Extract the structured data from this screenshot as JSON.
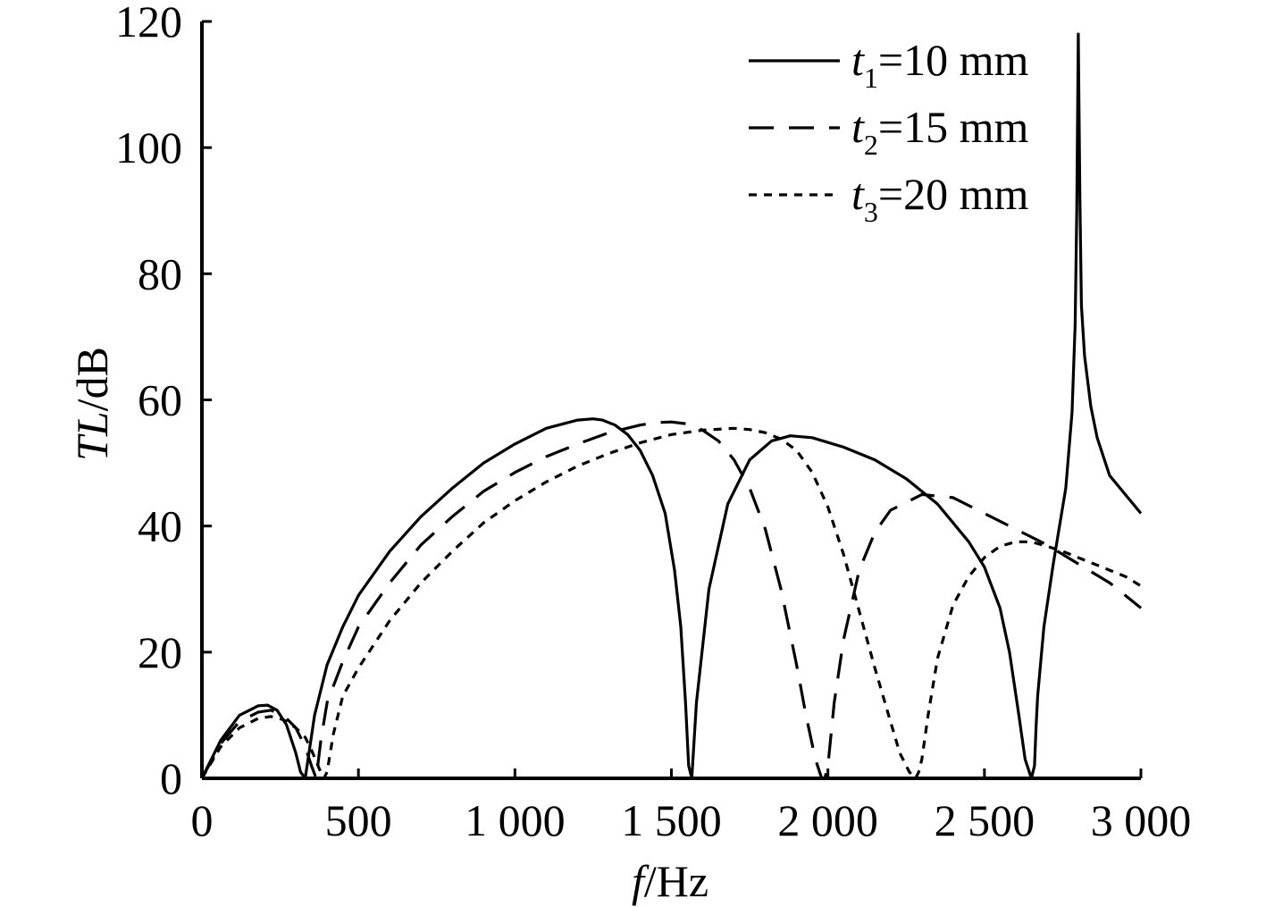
{
  "chart_data": {
    "type": "line",
    "title": "",
    "xlabel": {
      "var": "f",
      "unit": "/Hz"
    },
    "ylabel": {
      "var": "TL",
      "unit": "/dB"
    },
    "xlim": [
      0,
      3000
    ],
    "ylim": [
      0,
      120
    ],
    "xticks": [
      0,
      500,
      1000,
      1500,
      2000,
      2500,
      3000
    ],
    "xtick_labels": [
      "0",
      "500",
      "1 000",
      "1 500",
      "2 000",
      "2 500",
      "3 000"
    ],
    "yticks": [
      0,
      20,
      40,
      60,
      80,
      100,
      120
    ],
    "ytick_labels": [
      "0",
      "20",
      "40",
      "60",
      "80",
      "100",
      "120"
    ],
    "grid": false,
    "legend_position": "top-right",
    "series": [
      {
        "name": "t1=10 mm",
        "legend": {
          "var": "t",
          "sub": "1",
          "rest": "=10 mm"
        },
        "dash": "solid",
        "x": [
          0,
          60,
          120,
          180,
          210,
          240,
          270,
          300,
          315,
          330,
          360,
          400,
          450,
          500,
          600,
          700,
          800,
          900,
          1000,
          1100,
          1200,
          1250,
          1280,
          1320,
          1360,
          1400,
          1440,
          1480,
          1510,
          1530,
          1545,
          1555,
          1565,
          1580,
          1620,
          1680,
          1750,
          1820,
          1880,
          1950,
          2050,
          2150,
          2250,
          2350,
          2450,
          2500,
          2550,
          2580,
          2610,
          2630,
          2650,
          2660,
          2665,
          2670,
          2690,
          2720,
          2760,
          2780,
          2790,
          2795,
          2800,
          2805,
          2810,
          2820,
          2840,
          2860,
          2900,
          2950,
          3000
        ],
        "y": [
          0,
          6,
          10,
          11.5,
          11.6,
          10.8,
          8.5,
          4,
          1,
          0,
          10,
          18,
          24,
          29,
          36,
          41.5,
          46,
          50,
          53,
          55.5,
          56.8,
          57,
          56.8,
          56,
          54.5,
          52,
          48,
          42,
          33,
          24,
          12,
          2,
          0,
          12,
          30,
          43.5,
          50.5,
          53.5,
          54.3,
          54,
          52.5,
          50.5,
          47.5,
          43.5,
          37.5,
          33.5,
          27,
          20,
          10,
          3,
          0,
          2,
          8,
          13,
          24,
          34,
          46,
          58,
          72,
          90,
          118,
          92,
          75,
          67,
          59,
          54,
          48,
          45,
          42
        ]
      },
      {
        "name": "t2=15 mm",
        "legend": {
          "var": "t",
          "sub": "2",
          "rest": "=15 mm"
        },
        "dash": "28 17",
        "x": [
          0,
          60,
          120,
          180,
          220,
          260,
          300,
          330,
          350,
          365,
          380,
          400,
          450,
          500,
          600,
          700,
          800,
          900,
          1000,
          1100,
          1200,
          1300,
          1400,
          1450,
          1500,
          1550,
          1600,
          1650,
          1700,
          1750,
          1800,
          1850,
          1900,
          1930,
          1960,
          1980,
          1990,
          2000,
          2020,
          2050,
          2100,
          2150,
          2200,
          2300,
          2400,
          2500,
          2600,
          2700,
          2800,
          2850,
          2900,
          2950,
          3000
        ],
        "y": [
          0,
          5.5,
          9,
          10.5,
          10.8,
          10,
          8,
          5,
          2,
          0,
          6,
          12,
          18.5,
          24,
          31,
          37,
          41.5,
          45.5,
          48.5,
          51,
          53,
          54.8,
          56,
          56.4,
          56.5,
          56.2,
          55.2,
          53.5,
          50.5,
          46,
          39.5,
          30,
          18,
          10,
          3,
          0,
          0,
          2,
          12,
          22,
          33,
          39,
          42.5,
          45,
          44.5,
          42,
          39.5,
          37,
          34,
          32.5,
          31,
          29,
          27
        ]
      },
      {
        "name": "t3=20 mm",
        "legend": {
          "var": "t",
          "sub": "3",
          "rest": "=20 mm"
        },
        "dash": "9 8",
        "x": [
          0,
          60,
          120,
          180,
          220,
          260,
          300,
          330,
          350,
          375,
          390,
          400,
          420,
          450,
          500,
          600,
          700,
          800,
          900,
          1000,
          1100,
          1200,
          1300,
          1400,
          1500,
          1600,
          1700,
          1750,
          1800,
          1850,
          1900,
          1950,
          2000,
          2050,
          2100,
          2150,
          2200,
          2230,
          2260,
          2280,
          2290,
          2300,
          2320,
          2350,
          2400,
          2450,
          2500,
          2550,
          2600,
          2650,
          2700,
          2750,
          2800,
          2850,
          2900,
          2950,
          3000
        ],
        "y": [
          0,
          5,
          8,
          9.5,
          9.8,
          9.3,
          8,
          6.5,
          4.5,
          1.5,
          0,
          1,
          7,
          13,
          17.5,
          25,
          31,
          36,
          40.5,
          44,
          47,
          49.5,
          51.5,
          53.2,
          54.5,
          55.2,
          55.5,
          55.3,
          54.8,
          53.8,
          52,
          48.5,
          43,
          35.5,
          26.5,
          17.5,
          9,
          4,
          1,
          0,
          1,
          3,
          10,
          19,
          27.5,
          32,
          35,
          36.8,
          37.5,
          37.5,
          36.8,
          36,
          35,
          34,
          33,
          32,
          30.5
        ]
      }
    ]
  }
}
